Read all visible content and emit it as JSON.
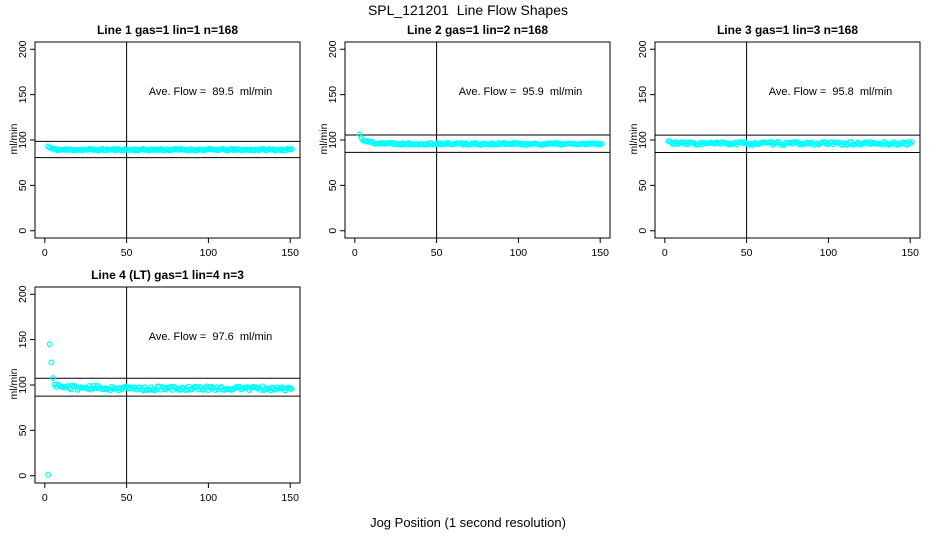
{
  "figure": {
    "title": "SPL_121201  Line Flow Shapes",
    "xlabel": "Jog Position (1 second resolution)",
    "background": "#ffffff",
    "point_color": "#00ffff",
    "axis_color": "#000000"
  },
  "chart_data": [
    {
      "type": "scatter",
      "title": "Line 1 gas=1 lin=1 n=168",
      "annotation": "Ave. Flow =  89.5  ml/min",
      "ave_flow": 89.5,
      "n": 168,
      "ylabel": "ml/min",
      "x_ticks": [
        0,
        50,
        100,
        150
      ],
      "y_ticks": [
        0,
        50,
        100,
        150,
        200
      ],
      "xlim": [
        -6,
        156
      ],
      "ylim": [
        -8,
        208
      ],
      "grid": false,
      "legend": "none",
      "vline_x": 50,
      "hlines": [
        98.5,
        80.6
      ],
      "series": {
        "name": "Line 1 flow",
        "x_start": 2,
        "x_end": 151,
        "profile": [
          [
            2,
            93
          ],
          [
            3,
            91.5
          ],
          [
            5,
            90
          ],
          [
            8,
            89.3
          ],
          [
            151,
            89.3
          ]
        ],
        "noise": 1.0,
        "outliers": [],
        "seed": 11
      }
    },
    {
      "type": "scatter",
      "title": "Line 2 gas=1 lin=2 n=168",
      "annotation": "Ave. Flow =  95.9  ml/min",
      "ave_flow": 95.9,
      "n": 168,
      "ylabel": "ml/min",
      "x_ticks": [
        0,
        50,
        100,
        150
      ],
      "y_ticks": [
        0,
        50,
        100,
        150,
        200
      ],
      "xlim": [
        -6,
        156
      ],
      "ylim": [
        -8,
        208
      ],
      "grid": false,
      "legend": "none",
      "vline_x": 50,
      "hlines": [
        105.5,
        86.3
      ],
      "series": {
        "name": "Line 2 flow",
        "x_start": 3,
        "x_end": 151,
        "profile": [
          [
            3,
            106
          ],
          [
            4,
            103
          ],
          [
            5,
            100.5
          ],
          [
            7,
            98.5
          ],
          [
            12,
            97
          ],
          [
            25,
            96
          ],
          [
            151,
            95.5
          ]
        ],
        "noise": 1.2,
        "outliers": [],
        "seed": 22
      }
    },
    {
      "type": "scatter",
      "title": "Line 3 gas=1 lin=3 n=168",
      "annotation": "Ave. Flow =  95.8  ml/min",
      "ave_flow": 95.8,
      "n": 168,
      "ylabel": "ml/min",
      "x_ticks": [
        0,
        50,
        100,
        150
      ],
      "y_ticks": [
        0,
        50,
        100,
        150,
        200
      ],
      "xlim": [
        -6,
        156
      ],
      "ylim": [
        -8,
        208
      ],
      "grid": false,
      "legend": "none",
      "vline_x": 50,
      "hlines": [
        105.4,
        86.2
      ],
      "series": {
        "name": "Line 3 flow",
        "x_start": 2,
        "x_end": 151,
        "profile": [
          [
            2,
            98.5
          ],
          [
            4,
            97
          ],
          [
            10,
            96.2
          ],
          [
            151,
            96.2
          ]
        ],
        "noise": 1.7,
        "outliers": [],
        "seed": 33
      }
    },
    {
      "type": "scatter",
      "title": "Line 4 (LT) gas=1 lin=4 n=3",
      "annotation": "Ave. Flow =  97.6  ml/min",
      "ave_flow": 97.6,
      "n": 3,
      "ylabel": "ml/min",
      "x_ticks": [
        0,
        50,
        100,
        150
      ],
      "y_ticks": [
        0,
        50,
        100,
        150,
        200
      ],
      "xlim": [
        -6,
        156
      ],
      "ylim": [
        -8,
        208
      ],
      "grid": false,
      "legend": "none",
      "vline_x": 50,
      "hlines": [
        107.4,
        87.8
      ],
      "series": {
        "name": "Line 4 flow",
        "x_start": 5,
        "x_end": 151,
        "profile": [
          [
            5,
            106
          ],
          [
            6,
            102
          ],
          [
            7,
            100
          ],
          [
            10,
            98
          ],
          [
            20,
            97
          ],
          [
            60,
            96
          ],
          [
            100,
            96.5
          ],
          [
            151,
            96
          ]
        ],
        "noise": 2.4,
        "outliers": [
          [
            2,
            1
          ],
          [
            3,
            145
          ],
          [
            4,
            125
          ]
        ],
        "seed": 44
      }
    }
  ]
}
